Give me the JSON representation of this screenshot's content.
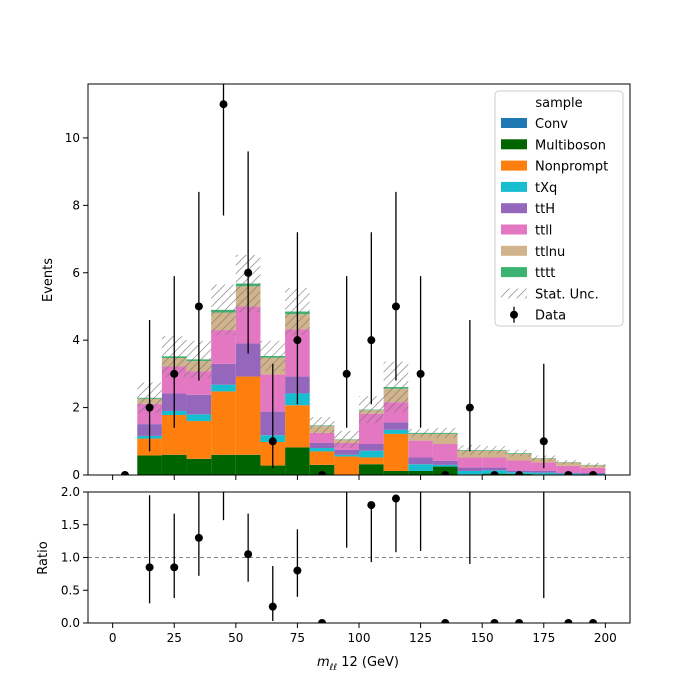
{
  "chart_data": {
    "type": "bar",
    "stacked": true,
    "bin_edges": [
      10,
      20,
      30,
      40,
      50,
      60,
      70,
      80,
      90,
      100,
      110,
      120,
      130,
      140,
      150,
      160,
      170,
      180,
      190,
      200
    ],
    "series": [
      {
        "name": "Conv",
        "color": "#1f77b4",
        "values": [
          0,
          0,
          0,
          0,
          0,
          0,
          0,
          0,
          0,
          0,
          0,
          0,
          0,
          0,
          0,
          0,
          0,
          0,
          0
        ]
      },
      {
        "name": "Multiboson",
        "color": "#006400",
        "values": [
          0.58,
          0.6,
          0.48,
          0.6,
          0.6,
          0.28,
          0.82,
          0.3,
          0.0,
          0.32,
          0.12,
          0.12,
          0.25,
          0.02,
          0.04,
          0.03,
          0.02,
          0.01,
          0.01
        ]
      },
      {
        "name": "Nonprompt",
        "color": "#ff7f0e",
        "values": [
          0.5,
          1.18,
          1.12,
          1.88,
          2.32,
          0.7,
          1.25,
          0.4,
          0.55,
          0.2,
          1.1,
          0.0,
          0.0,
          0.0,
          0.0,
          0.0,
          0.0,
          0.0,
          0.0
        ]
      },
      {
        "name": "tXq",
        "color": "#17becf",
        "values": [
          0.08,
          0.12,
          0.2,
          0.2,
          0.0,
          0.2,
          0.35,
          0.1,
          0.05,
          0.2,
          0.12,
          0.2,
          0.05,
          0.1,
          0.1,
          0.05,
          0.05,
          0.03,
          0.02
        ]
      },
      {
        "name": "ttH",
        "color": "#9467bd",
        "values": [
          0.35,
          0.52,
          0.58,
          0.62,
          0.98,
          0.7,
          0.5,
          0.15,
          0.15,
          0.2,
          0.22,
          0.2,
          0.12,
          0.1,
          0.08,
          0.05,
          0.05,
          0.03,
          0.03
        ]
      },
      {
        "name": "ttll",
        "color": "#e377c2",
        "values": [
          0.6,
          0.8,
          0.7,
          1.0,
          1.1,
          1.1,
          1.4,
          0.3,
          0.2,
          0.9,
          0.6,
          0.5,
          0.5,
          0.3,
          0.3,
          0.3,
          0.25,
          0.2,
          0.15
        ]
      },
      {
        "name": "ttlnu",
        "color": "#d2b48c",
        "values": [
          0.15,
          0.25,
          0.3,
          0.52,
          0.6,
          0.5,
          0.45,
          0.2,
          0.1,
          0.1,
          0.4,
          0.2,
          0.3,
          0.2,
          0.2,
          0.2,
          0.12,
          0.1,
          0.08
        ]
      },
      {
        "name": "tttt",
        "color": "#3cb371",
        "values": [
          0.03,
          0.05,
          0.05,
          0.08,
          0.08,
          0.05,
          0.08,
          0.02,
          0.01,
          0.02,
          0.05,
          0.03,
          0.03,
          0.02,
          0.02,
          0.02,
          0.01,
          0.01,
          0.01
        ]
      }
    ],
    "stat_unc": [
      0.45,
      0.6,
      0.55,
      0.75,
      0.85,
      0.45,
      0.7,
      0.25,
      0.25,
      0.4,
      0.75,
      0.12,
      0.15,
      0.15,
      0.12,
      0.1,
      0.08,
      0.06,
      0.06
    ],
    "data": {
      "x": [
        5,
        15,
        25,
        35,
        45,
        55,
        65,
        75,
        85,
        95,
        105,
        115,
        125,
        135,
        145,
        155,
        165,
        175,
        185,
        195
      ],
      "y": [
        0,
        2,
        3,
        5,
        11,
        6,
        1,
        4,
        0,
        3,
        4,
        5,
        3,
        0,
        2,
        0,
        0,
        1,
        0,
        0
      ],
      "yerr_low": [
        0,
        1.3,
        1.6,
        2.2,
        3.3,
        2.4,
        0.8,
        1.9,
        0,
        1.6,
        1.9,
        2.2,
        1.6,
        0,
        1.3,
        0,
        0,
        0.8,
        0,
        0
      ],
      "yerr_high": [
        0,
        2.6,
        2.9,
        3.4,
        0.8,
        3.6,
        2.3,
        3.2,
        0,
        2.9,
        3.2,
        3.4,
        2.9,
        0,
        2.6,
        0,
        0,
        2.3,
        0,
        0
      ]
    },
    "ratio": {
      "x": [
        15,
        25,
        35,
        45,
        55,
        65,
        75,
        85,
        95,
        105,
        115,
        125,
        135,
        145,
        155,
        165,
        175,
        185,
        195
      ],
      "y": [
        0.85,
        0.85,
        1.3,
        null,
        1.05,
        0.25,
        0.8,
        0.0,
        null,
        1.8,
        1.9,
        null,
        0.0,
        null,
        0.0,
        0.0,
        null,
        0.0,
        0.0
      ],
      "err_low": [
        0.55,
        0.47,
        0.58,
        null,
        0.42,
        0.22,
        0.4,
        0,
        null,
        0.87,
        0.82,
        null,
        0,
        null,
        0,
        0,
        null,
        0,
        0
      ],
      "err_high": [
        1.1,
        0.82,
        0.7,
        null,
        0.62,
        0.62,
        0.63,
        0,
        null,
        0,
        0,
        null,
        0,
        null,
        0,
        0,
        null,
        0,
        0
      ],
      "offscale": [
        {
          "x": 45,
          "from": 1.57
        },
        {
          "x": 95,
          "from": 1.15
        },
        {
          "x": 125,
          "from": 1.1
        },
        {
          "x": 145,
          "from": 0.9
        },
        {
          "x": 175,
          "from": 0.38
        }
      ]
    },
    "main_axis": {
      "ylabel": "Events",
      "ylim": [
        0,
        11.6
      ],
      "yticks": [
        0,
        2,
        4,
        6,
        8,
        10
      ]
    },
    "ratio_axis": {
      "ylabel": "Ratio",
      "ylim": [
        0,
        2.0
      ],
      "yticks": [
        0.0,
        0.5,
        1.0,
        1.5,
        2.0
      ],
      "reference": 1.0
    },
    "x_axis": {
      "xlabel_main": "m",
      "xlabel_sub": "ℓℓ",
      "xlabel_rest": " 12 (GeV)",
      "xlim": [
        -10,
        210
      ],
      "xticks": [
        0,
        25,
        50,
        75,
        100,
        125,
        150,
        175,
        200
      ]
    },
    "legend": {
      "title": "sample",
      "placement": "top-right",
      "entries": [
        "Conv",
        "Multiboson",
        "Nonprompt",
        "tXq",
        "ttH",
        "ttll",
        "ttlnu",
        "tttt",
        "Stat. Unc.",
        "Data"
      ]
    }
  }
}
